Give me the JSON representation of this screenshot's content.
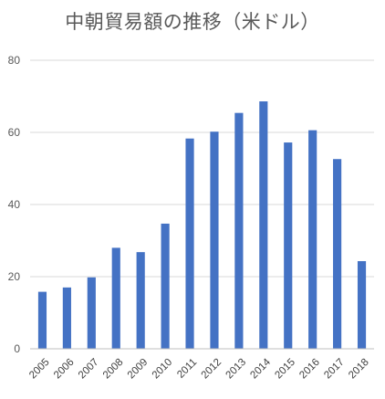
{
  "chart_data": {
    "type": "bar",
    "title": "中朝貿易額の推移（米ドル）",
    "xlabel": "",
    "ylabel": "",
    "categories": [
      "2005",
      "2006",
      "2007",
      "2008",
      "2009",
      "2010",
      "2011",
      "2012",
      "2013",
      "2014",
      "2015",
      "2016",
      "2017",
      "2018"
    ],
    "values": [
      15.8,
      17.0,
      19.8,
      28.0,
      26.8,
      34.7,
      58.3,
      60.2,
      65.4,
      68.6,
      57.2,
      60.6,
      52.6,
      24.3
    ],
    "ylim": [
      0,
      80
    ],
    "yticks": [
      0,
      20,
      40,
      60,
      80
    ],
    "grid": true,
    "legend": "none",
    "colors": {
      "bar": "#4472C4",
      "grid": "#D9D9D9",
      "axis": "#BFBFBF"
    }
  }
}
